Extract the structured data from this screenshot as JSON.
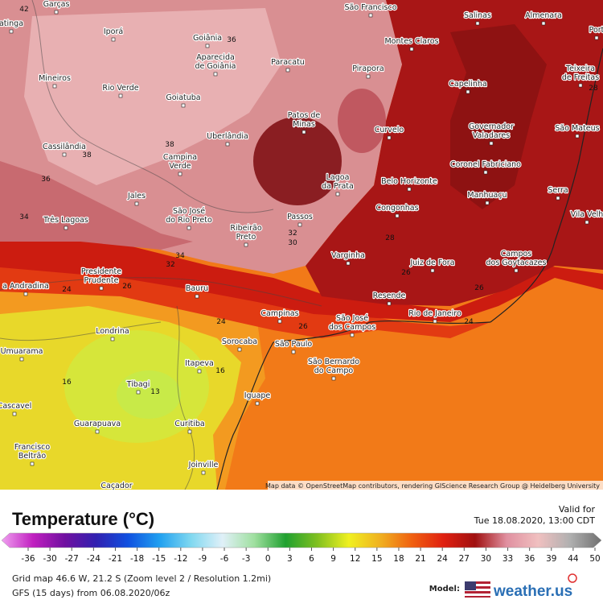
{
  "map": {
    "cities": [
      [
        "Garças"
      ],
      [
        "atinga"
      ],
      [
        "Iporá"
      ],
      [
        "Goiânia"
      ],
      [
        "Aparecida",
        "de Goiânia"
      ],
      [
        "Paracatu"
      ],
      [
        "São Francisco"
      ],
      [
        "Montes Claros"
      ],
      [
        "Salinas"
      ],
      [
        "Almenara"
      ],
      [
        "Port"
      ],
      [
        "Pirapora"
      ],
      [
        "Teixeira",
        "de Freitas"
      ],
      [
        "Mineiros"
      ],
      [
        "Rio Verde"
      ],
      [
        "Goiatuba"
      ],
      [
        "Capelinha"
      ],
      [
        "Patos de",
        "Minas"
      ],
      [
        "Curvelo"
      ],
      [
        "Governador",
        "Valadares"
      ],
      [
        "São Mateus"
      ],
      [
        "Uberlândia"
      ],
      [
        "Cassilândia"
      ],
      [
        "Campina",
        "Verde"
      ],
      [
        "Coronel Fabriciano"
      ],
      [
        "Lagoa",
        "da Prata"
      ],
      [
        "Belo Horizonte"
      ],
      [
        "Manhuaçu"
      ],
      [
        "Serra"
      ],
      [
        "Jales"
      ],
      [
        "São José",
        "do Rio Preto"
      ],
      [
        "Congonhas"
      ],
      [
        "Vila Velh"
      ],
      [
        "Três Lagoas"
      ],
      [
        "Passos"
      ],
      [
        "Ribeirão",
        "Preto"
      ],
      [
        "Campos",
        "dos Goytacazes"
      ],
      [
        "Varginha"
      ],
      [
        "Juiz de Fora"
      ],
      [
        "Presidente",
        "Prudente"
      ],
      [
        "a Andradina"
      ],
      [
        "Bauru"
      ],
      [
        "Resende"
      ],
      [
        "Campinas"
      ],
      [
        "São José",
        "dos Campos"
      ],
      [
        "Rio de Janeiro"
      ],
      [
        "Londrina"
      ],
      [
        "Sorocaba"
      ],
      [
        "São Paulo"
      ],
      [
        "São Bernardo",
        "do Campo"
      ],
      [
        "Umuarama"
      ],
      [
        "Itapeva"
      ],
      [
        "Tibagi"
      ],
      [
        "Iguape"
      ],
      [
        "Cascavel"
      ],
      [
        "Guarapuava"
      ],
      [
        "Curitiba"
      ],
      [
        "Francisco",
        "Beltrão"
      ],
      [
        "Joinville"
      ],
      [
        "Caçador"
      ]
    ],
    "contour_labels": [
      42,
      36,
      38,
      38,
      36,
      34,
      34,
      32,
      32,
      30,
      26,
      26,
      26,
      24,
      24,
      24,
      26,
      16,
      16,
      13,
      28,
      28
    ],
    "attribution": "Map data © OpenStreetMap contributors, rendering GIScience Research Group @ Heidelberg University"
  },
  "legend": {
    "title": "Temperature (°C)",
    "ticks": [
      -36,
      -30,
      -27,
      -24,
      -21,
      -18,
      -15,
      -12,
      -9,
      -6,
      -3,
      0,
      3,
      6,
      9,
      12,
      15,
      18,
      21,
      24,
      27,
      30,
      33,
      36,
      39,
      44,
      50
    ],
    "colors": [
      "#f0a0f0",
      "#c020c0",
      "#7010a0",
      "#3020b0",
      "#1050e0",
      "#20a0f0",
      "#80d8f0",
      "#e0f0f8",
      "#a0e0a0",
      "#20a030",
      "#80c020",
      "#f0f020",
      "#f0b020",
      "#f06010",
      "#e02010",
      "#a01010",
      "#e090a0",
      "#f0c0c0",
      "#b0b0b0",
      "#707070"
    ]
  },
  "footer": {
    "valid_label": "Valid for",
    "valid_time": "Tue 18.08.2020, 13:00 CDT",
    "grid": "Grid map 46.6 W, 21.2 S (Zoom level 2 / Resolution 1.2mi)",
    "model_run": "GFS (15 days) from 06.08.2020/06z",
    "model_label": "Model:",
    "brand": "weather.us"
  }
}
